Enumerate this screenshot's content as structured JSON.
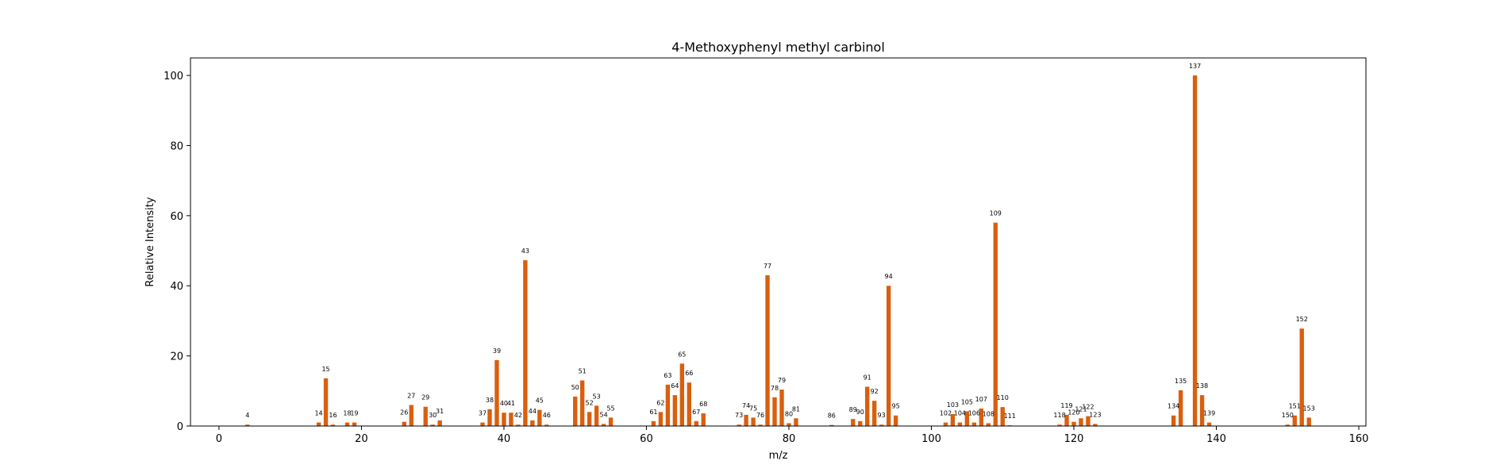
{
  "chart_data": {
    "type": "bar",
    "title": "4-Methoxyphenyl methyl carbinol",
    "xlabel": "m/z",
    "ylabel": "Relative Intensity",
    "xlim": [
      -4,
      161
    ],
    "ylim": [
      0,
      105
    ],
    "xticks": [
      0,
      20,
      40,
      60,
      80,
      100,
      120,
      140,
      160
    ],
    "yticks": [
      0,
      20,
      40,
      60,
      80,
      100
    ],
    "grid": false,
    "bar_color": "#d95f0e",
    "x": [
      4,
      14,
      15,
      16,
      18,
      19,
      26,
      27,
      29,
      30,
      31,
      37,
      38,
      39,
      40,
      41,
      42,
      43,
      44,
      45,
      46,
      50,
      51,
      52,
      53,
      54,
      55,
      61,
      62,
      63,
      64,
      65,
      66,
      67,
      68,
      73,
      74,
      75,
      76,
      77,
      78,
      79,
      80,
      81,
      86,
      89,
      90,
      91,
      92,
      93,
      94,
      95,
      102,
      103,
      104,
      105,
      106,
      107,
      108,
      109,
      110,
      111,
      118,
      119,
      120,
      121,
      122,
      123,
      134,
      135,
      137,
      138,
      139,
      150,
      151,
      152,
      153
    ],
    "values": [
      0.4,
      1.0,
      13.6,
      0.4,
      1.0,
      1.0,
      1.2,
      6.0,
      5.5,
      0.4,
      1.6,
      1.0,
      4.8,
      18.8,
      3.8,
      3.8,
      0.4,
      47.3,
      1.6,
      4.6,
      0.4,
      8.4,
      13.0,
      4.0,
      5.8,
      0.6,
      2.4,
      1.4,
      4.0,
      11.8,
      8.8,
      17.8,
      12.4,
      1.4,
      3.6,
      0.4,
      3.2,
      2.4,
      0.4,
      43.0,
      8.2,
      10.4,
      0.8,
      2.2,
      0.3,
      2.0,
      1.4,
      11.2,
      7.2,
      0.4,
      40.0,
      3.0,
      1.0,
      3.4,
      1.0,
      4.2,
      1.0,
      5.0,
      0.8,
      58.0,
      5.4,
      0.2,
      0.4,
      3.2,
      1.2,
      2.2,
      2.8,
      0.6,
      3.0,
      10.2,
      100.0,
      8.8,
      1.0,
      0.4,
      3.0,
      27.8,
      2.4
    ]
  }
}
